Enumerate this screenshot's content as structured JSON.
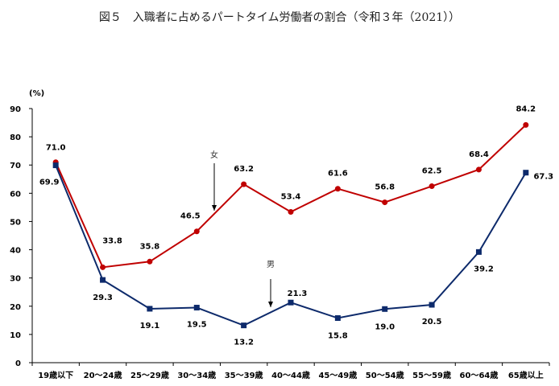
{
  "chart_data": {
    "type": "line",
    "title": "図５　入職者に占めるパートタイム労働者の割合（令和３年（2021））",
    "ylabel": "(%)",
    "ylim": [
      0,
      90
    ],
    "yticks": [
      0,
      10,
      20,
      30,
      40,
      50,
      60,
      70,
      80,
      90
    ],
    "grid": false,
    "categories": [
      "19歳以下",
      "20～24歳",
      "25～29歳",
      "30～34歳",
      "35～39歳",
      "40～44歳",
      "45～49歳",
      "50～54歳",
      "55～59歳",
      "60～64歳",
      "65歳以上"
    ],
    "series": [
      {
        "name": "女",
        "color": "#c00000",
        "marker": "circle",
        "values": [
          71.0,
          33.8,
          35.8,
          46.5,
          63.2,
          53.4,
          61.6,
          56.8,
          62.5,
          68.4,
          84.2
        ],
        "labels": [
          "71.0",
          "33.8",
          "35.8",
          "46.5",
          "63.2",
          "53.4",
          "61.6",
          "56.8",
          "62.5",
          "68.4",
          "84.2"
        ]
      },
      {
        "name": "男",
        "color": "#0d2a6b",
        "marker": "square",
        "values": [
          69.9,
          29.3,
          19.1,
          19.5,
          13.2,
          21.3,
          15.8,
          19.0,
          20.5,
          39.2,
          67.3
        ],
        "labels": [
          "69.9",
          "29.3",
          "19.1",
          "19.5",
          "13.2",
          "21.3",
          "15.8",
          "19.0",
          "20.5",
          "39.2",
          "67.3"
        ]
      }
    ]
  }
}
